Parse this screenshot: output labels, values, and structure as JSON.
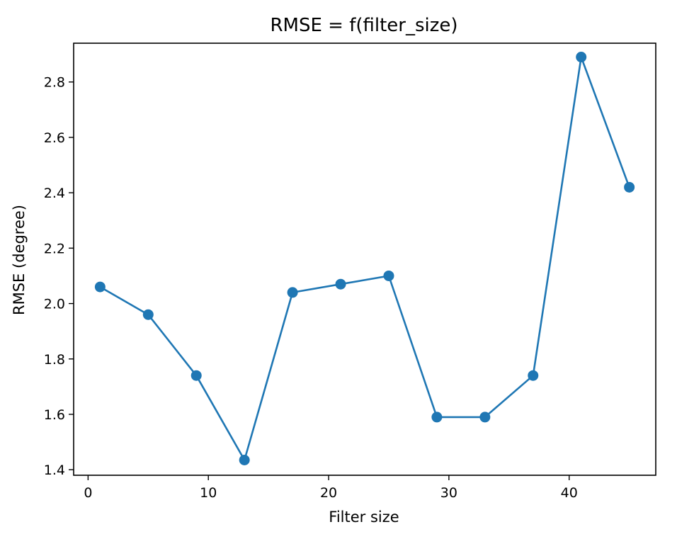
{
  "chart_data": {
    "type": "line",
    "title": "RMSE = f(filter_size)",
    "xlabel": "Filter size",
    "ylabel": "RMSE (degree)",
    "xlim": [
      -1.2,
      47.2
    ],
    "ylim": [
      1.38,
      2.94
    ],
    "xticks": [
      0,
      10,
      20,
      30,
      40
    ],
    "yticks": [
      1.4,
      1.6,
      1.8,
      2.0,
      2.2,
      2.4,
      2.6,
      2.8
    ],
    "xtick_labels": [
      "0",
      "10",
      "20",
      "30",
      "40"
    ],
    "ytick_labels": [
      "1.4",
      "1.6",
      "1.8",
      "2.0",
      "2.2",
      "2.4",
      "2.6",
      "2.8"
    ],
    "grid": false,
    "series": [
      {
        "color": "#1f77b4",
        "marker": "circle",
        "x": [
          1,
          5,
          9,
          13,
          17,
          21,
          25,
          29,
          33,
          37,
          41,
          45
        ],
        "y": [
          2.06,
          1.96,
          1.74,
          1.435,
          2.04,
          2.07,
          2.1,
          1.59,
          1.59,
          1.74,
          2.89,
          2.42
        ]
      }
    ]
  }
}
